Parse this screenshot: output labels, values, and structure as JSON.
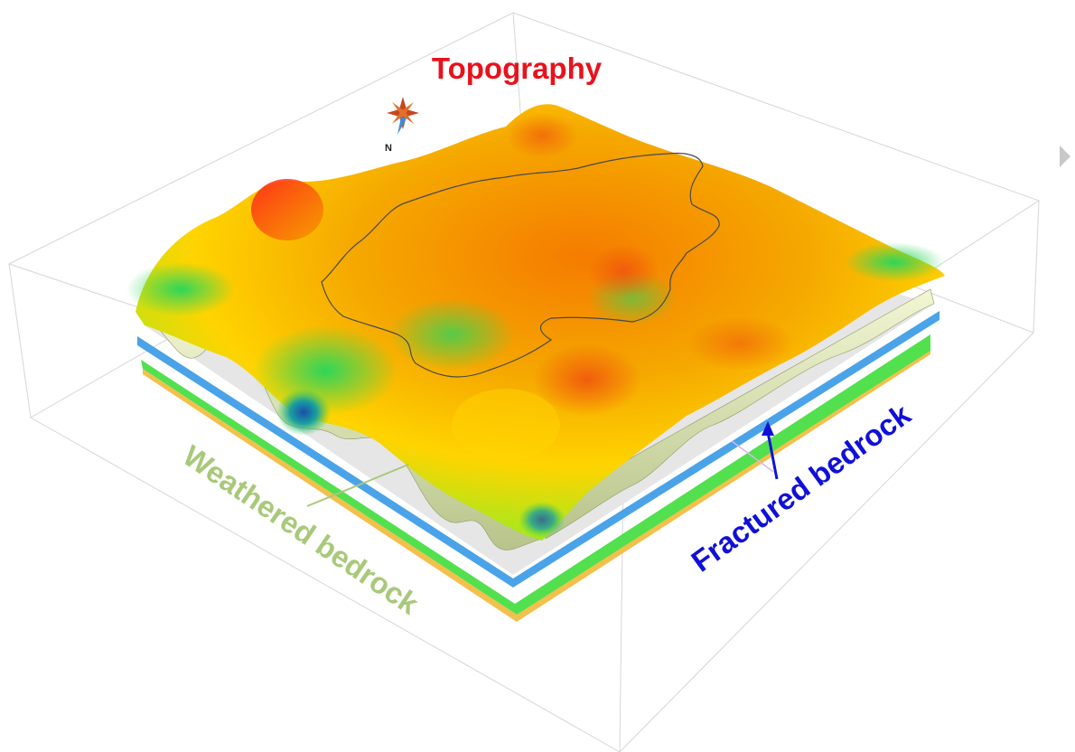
{
  "labels": {
    "topography": "Topography",
    "weathered": "Weathered bedrock",
    "fractured": "Fractured bedrock"
  },
  "compass": {
    "north_letter": "N",
    "icon": "compass-rose-icon"
  },
  "nav": {
    "next_icon": "chevron-right-icon"
  },
  "colors": {
    "topography_label": "#e8121c",
    "weathered_label": "#a9c97a",
    "fractured_label": "#1010d8",
    "fractured_layer": "#4aa3e8",
    "weathered_layer": "#52e04e",
    "base_layer": "#f4c04c",
    "bedrock_gray": "#e6e6e6",
    "bedrock_wall": "#dfe8b0",
    "terrain_low": "#1f5fb0",
    "terrain_mid": "#35d04a",
    "terrain_mid2": "#c8e81c",
    "terrain_high": "#f5b800",
    "terrain_peak": "#e8181a"
  }
}
